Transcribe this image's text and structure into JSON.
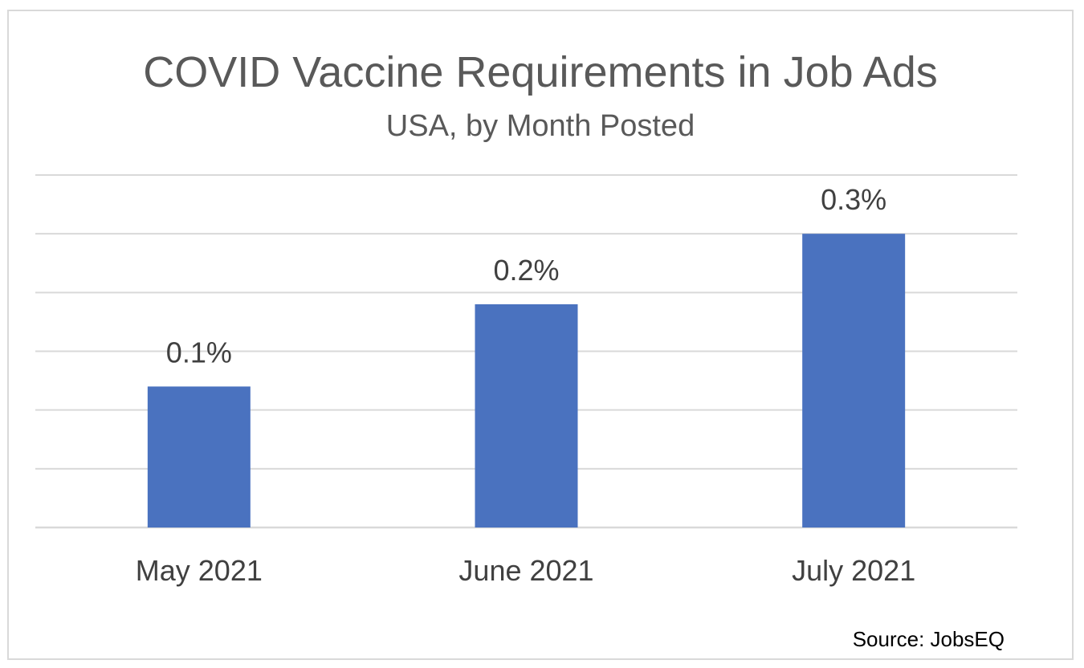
{
  "chart_data": {
    "type": "bar",
    "title": "COVID Vaccine Requirements in Job Ads",
    "subtitle": "USA, by Month Posted",
    "categories": [
      "May 2021",
      "June 2021",
      "July 2021"
    ],
    "values": [
      0.12,
      0.19,
      0.25
    ],
    "data_labels": [
      "0.1%",
      "0.2%",
      "0.3%"
    ],
    "ylim": [
      0,
      0.3
    ],
    "grid": true,
    "bar_color": "#4a72bf",
    "grid_color": "#d9d9d9",
    "source": "Source: JobsEQ"
  }
}
